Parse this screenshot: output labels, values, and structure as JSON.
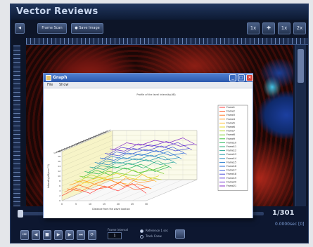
{
  "app": {
    "title": "Vector Reviews"
  },
  "toolbar": {
    "left_buttons": [
      {
        "label": "◀",
        "icon": "back-icon"
      },
      {
        "label": "Frame Scan"
      },
      {
        "label": "● Save Image"
      }
    ],
    "right_buttons": [
      {
        "label": "1x",
        "icon": "zoom-fit-icon"
      },
      {
        "label": "✚",
        "icon": "crosshair-icon"
      },
      {
        "label": "1x"
      },
      {
        "label": "2x"
      }
    ]
  },
  "status": {
    "frame_count": "1/301",
    "time_readout": "0.0000sec [0]"
  },
  "playback": {
    "interval_label": "Frame interval",
    "interval_value": "1",
    "radios": [
      {
        "label": "Reference 1 sec",
        "selected": true
      },
      {
        "label": "Track Cnew",
        "selected": false
      }
    ]
  },
  "timeline": {
    "progress": 0.0
  },
  "graph_window": {
    "title": "Graph",
    "menu": [
      "File",
      "Show"
    ],
    "buttons": [
      "_",
      "□",
      "✕"
    ]
  },
  "chart_data": {
    "type": "line",
    "title": "Profile of the level intensity(dB)",
    "xlabel": "Distance from the wave location",
    "ylabel": "Intensity(dB/mm^2)",
    "x": [
      0,
      5,
      10,
      15,
      20,
      25,
      30
    ],
    "x_ticks": [
      "0",
      "5",
      "10",
      "15",
      "20",
      "25",
      "30"
    ],
    "z_ticks": [
      "Frame1",
      "Frame2",
      "Frame3",
      "Frame4",
      "Frame5",
      "Frame6",
      "Frame7",
      "Frame8",
      "Frame9",
      "Frame10",
      "Frame11",
      "Frame12",
      "Frame13",
      "Frame14",
      "Frame15",
      "Frame16",
      "Frame17",
      "Frame18",
      "Frame19",
      "Frame20",
      "Frame21"
    ],
    "series": [
      {
        "name": "Frame1",
        "color": "#ff3a3a",
        "values": [
          2,
          5,
          3,
          6,
          4,
          7,
          3
        ]
      },
      {
        "name": "Frame2",
        "color": "#ff5a2a",
        "values": [
          3,
          6,
          4,
          5,
          7,
          4,
          5
        ]
      },
      {
        "name": "Frame3",
        "color": "#ff7b2a",
        "values": [
          4,
          3,
          6,
          8,
          5,
          6,
          4
        ]
      },
      {
        "name": "Frame4",
        "color": "#ff9b2a",
        "values": [
          5,
          7,
          5,
          4,
          8,
          6,
          7
        ]
      },
      {
        "name": "Frame5",
        "color": "#ffbf2a",
        "values": [
          3,
          6,
          8,
          6,
          5,
          9,
          6
        ]
      },
      {
        "name": "Frame6",
        "color": "#e8d82a",
        "values": [
          6,
          5,
          7,
          9,
          7,
          6,
          8
        ]
      },
      {
        "name": "Frame7",
        "color": "#b7d62a",
        "values": [
          5,
          8,
          6,
          7,
          10,
          7,
          6
        ]
      },
      {
        "name": "Frame8",
        "color": "#7ccc2e",
        "values": [
          7,
          6,
          9,
          8,
          7,
          10,
          8
        ]
      },
      {
        "name": "Frame9",
        "color": "#3ec43a",
        "values": [
          6,
          9,
          7,
          10,
          8,
          9,
          11
        ]
      },
      {
        "name": "Frame10",
        "color": "#2aba5c",
        "values": [
          8,
          7,
          10,
          9,
          11,
          8,
          10
        ]
      },
      {
        "name": "Frame11",
        "color": "#2ab07a",
        "values": [
          7,
          10,
          9,
          11,
          9,
          12,
          9
        ]
      },
      {
        "name": "Frame12",
        "color": "#2aa896",
        "values": [
          9,
          8,
          11,
          10,
          12,
          10,
          11
        ]
      },
      {
        "name": "Frame13",
        "color": "#2a9cab",
        "values": [
          8,
          11,
          10,
          12,
          11,
          13,
          10
        ]
      },
      {
        "name": "Frame14",
        "color": "#2a8ec0",
        "values": [
          10,
          9,
          12,
          11,
          13,
          11,
          12
        ]
      },
      {
        "name": "Frame15",
        "color": "#2a80d0",
        "values": [
          9,
          12,
          11,
          13,
          12,
          14,
          11
        ]
      },
      {
        "name": "Frame16",
        "color": "#2a6ed8",
        "values": [
          11,
          10,
          13,
          12,
          14,
          12,
          13
        ]
      },
      {
        "name": "Frame17",
        "color": "#3a5ed8",
        "values": [
          10,
          13,
          12,
          14,
          13,
          15,
          12
        ]
      },
      {
        "name": "Frame18",
        "color": "#4c4ed8",
        "values": [
          12,
          11,
          14,
          13,
          15,
          13,
          14
        ]
      },
      {
        "name": "Frame19",
        "color": "#5e3ed8",
        "values": [
          11,
          14,
          13,
          15,
          14,
          16,
          13
        ]
      },
      {
        "name": "Frame20",
        "color": "#7030d0",
        "values": [
          13,
          12,
          15,
          14,
          16,
          14,
          15
        ]
      },
      {
        "name": "Frame21",
        "color": "#8428c8",
        "values": [
          12,
          15,
          14,
          16,
          15,
          17,
          14
        ]
      }
    ],
    "ylim": [
      0,
      20
    ],
    "y_ticks": [
      "0",
      "2",
      "4",
      "6",
      "8",
      "10",
      "12",
      "14",
      "16",
      "18",
      "20"
    ],
    "legend": "right",
    "grid": true
  }
}
